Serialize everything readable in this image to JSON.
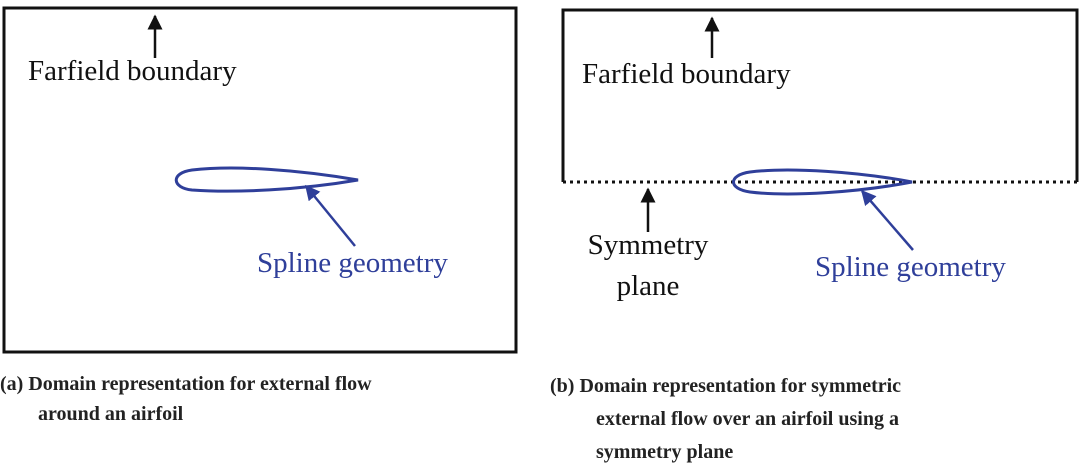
{
  "panels": [
    {
      "boundary_label": "Farfield boundary",
      "geometry_label": "Spline geometry",
      "caption": [
        "(a) Domain representation for external flow",
        "around an airfoil"
      ]
    },
    {
      "boundary_label": "Farfield boundary",
      "geometry_label": "Spline geometry",
      "symmetry_label": [
        "Symmetry",
        "plane"
      ],
      "caption": [
        "(b) Domain representation for symmetric",
        "external flow over an airfoil using a",
        "symmetry plane"
      ]
    }
  ]
}
